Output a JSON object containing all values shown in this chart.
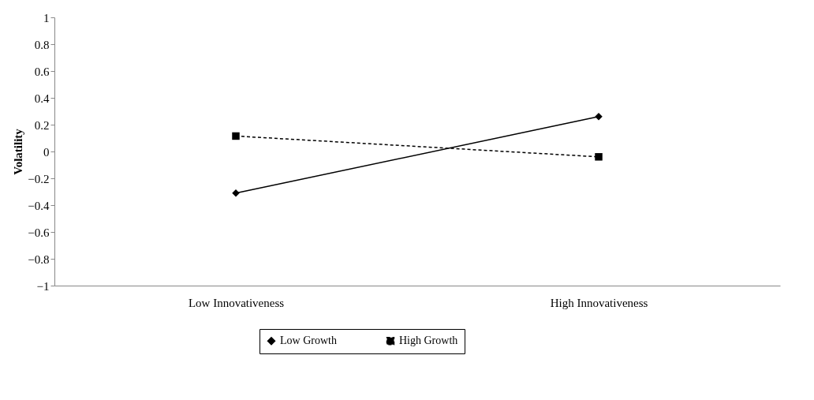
{
  "chart_data": {
    "type": "line",
    "ylabel": "Volatility",
    "categories": [
      "Low Innovativeness",
      "High Innovativeness"
    ],
    "series": [
      {
        "name": "Low Growth",
        "color": "#000000",
        "values": [
          -0.31,
          0.26
        ],
        "marker": "diamond",
        "line_style": "solid"
      },
      {
        "name": "High Growth",
        "color": "#000000",
        "values": [
          0.115,
          -0.04
        ],
        "marker": "square",
        "line_style": "dashed"
      }
    ],
    "ylim": [
      -1,
      1
    ],
    "yticks": [
      -1,
      -0.8,
      -0.6,
      -0.4,
      -0.2,
      0,
      0.2,
      0.4,
      0.6,
      0.8,
      1
    ],
    "grid": false,
    "legend": "bottom"
  }
}
